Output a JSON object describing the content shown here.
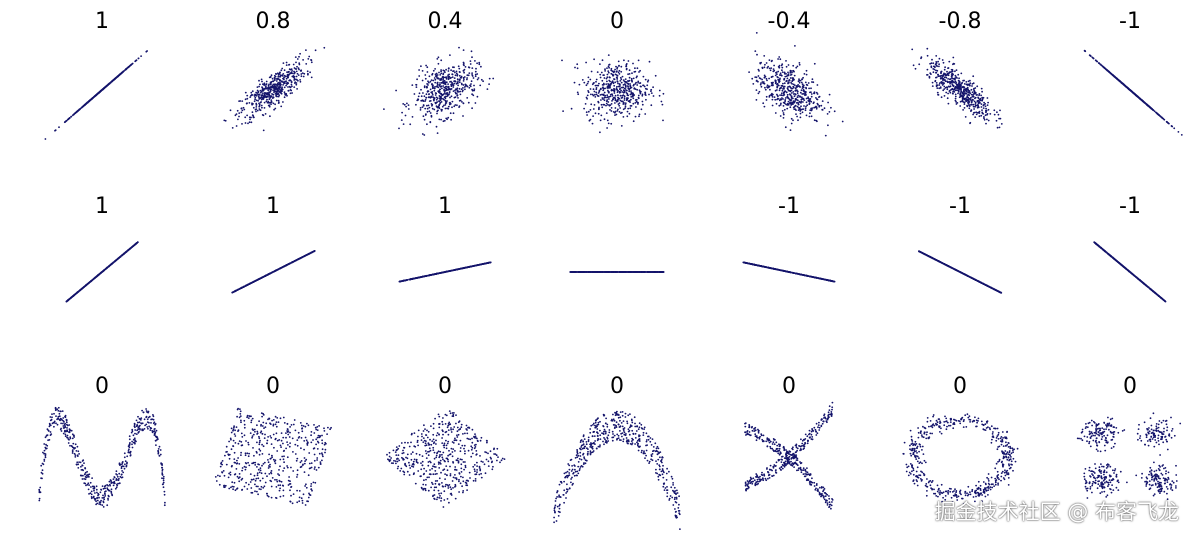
{
  "chart_data": {
    "type": "scatter",
    "title": "",
    "point_color": "#14146b",
    "panels": [
      {
        "row": 0,
        "col": 0,
        "label": "1",
        "kind": "gauss",
        "r": 1
      },
      {
        "row": 0,
        "col": 1,
        "label": "0.8",
        "kind": "gauss",
        "r": 0.8
      },
      {
        "row": 0,
        "col": 2,
        "label": "0.4",
        "kind": "gauss",
        "r": 0.4
      },
      {
        "row": 0,
        "col": 3,
        "label": "0",
        "kind": "gauss",
        "r": 0
      },
      {
        "row": 0,
        "col": 4,
        "label": "-0.4",
        "kind": "gauss",
        "r": -0.4
      },
      {
        "row": 0,
        "col": 5,
        "label": "-0.8",
        "kind": "gauss",
        "r": -0.8
      },
      {
        "row": 0,
        "col": 6,
        "label": "-1",
        "kind": "gauss",
        "r": -1
      },
      {
        "row": 1,
        "col": 0,
        "label": "1",
        "kind": "line",
        "slope_deg": 40
      },
      {
        "row": 1,
        "col": 1,
        "label": "1",
        "kind": "line",
        "slope_deg": 27
      },
      {
        "row": 1,
        "col": 2,
        "label": "1",
        "kind": "line",
        "slope_deg": 12
      },
      {
        "row": 1,
        "col": 3,
        "label": "",
        "kind": "line",
        "slope_deg": 0
      },
      {
        "row": 1,
        "col": 4,
        "label": "-1",
        "kind": "line",
        "slope_deg": -12
      },
      {
        "row": 1,
        "col": 5,
        "label": "-1",
        "kind": "line",
        "slope_deg": -27
      },
      {
        "row": 1,
        "col": 6,
        "label": "-1",
        "kind": "line",
        "slope_deg": -40
      },
      {
        "row": 2,
        "col": 0,
        "label": "0",
        "kind": "w"
      },
      {
        "row": 2,
        "col": 1,
        "label": "0",
        "kind": "square"
      },
      {
        "row": 2,
        "col": 2,
        "label": "0",
        "kind": "diamond"
      },
      {
        "row": 2,
        "col": 3,
        "label": "0",
        "kind": "parabola"
      },
      {
        "row": 2,
        "col": 4,
        "label": "0",
        "kind": "x"
      },
      {
        "row": 2,
        "col": 5,
        "label": "0",
        "kind": "ring"
      },
      {
        "row": 2,
        "col": 6,
        "label": "0",
        "kind": "clusters"
      }
    ]
  },
  "watermark": "掘金技术社区 @ 布客飞龙"
}
